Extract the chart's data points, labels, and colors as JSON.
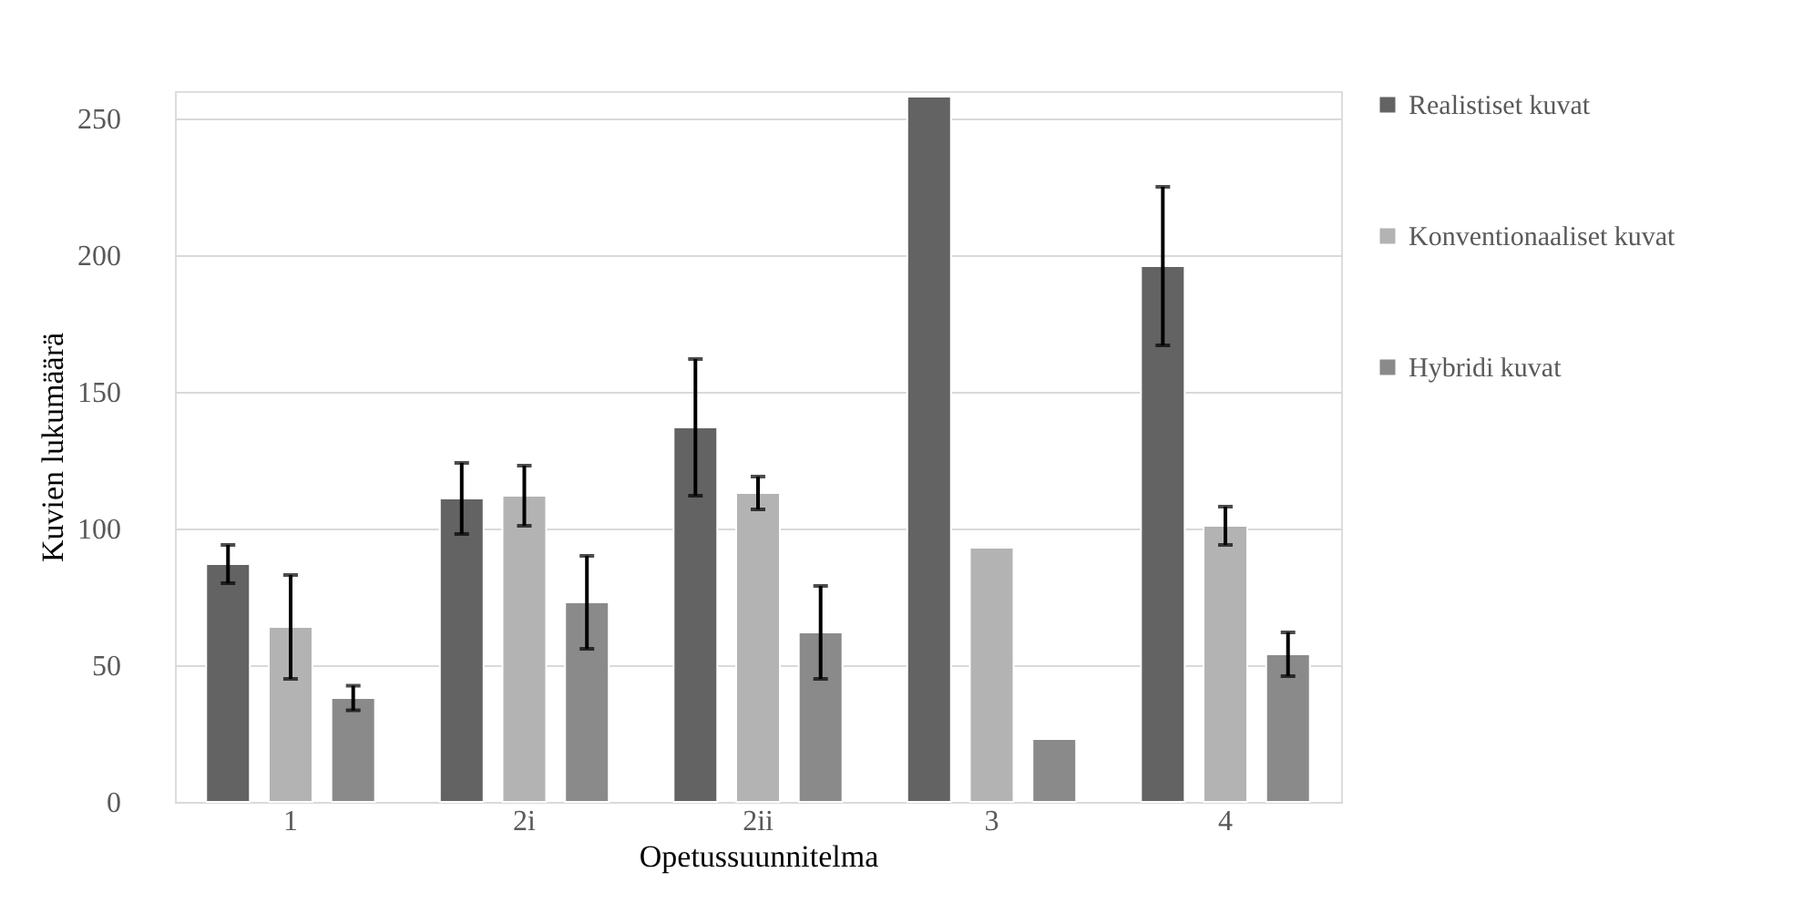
{
  "chart_data": {
    "type": "bar",
    "xlabel": "Opetussuunnitelma",
    "ylabel": "Kuvien lukumäärä",
    "categories": [
      "1",
      "2i",
      "2ii",
      "3",
      "4"
    ],
    "series": [
      {
        "name": "Realistiset kuvat",
        "color": "#636363",
        "values": [
          87,
          111,
          137,
          258,
          196
        ],
        "errors": [
          7,
          13,
          25,
          null,
          29
        ]
      },
      {
        "name": "Konventionaaliset kuvat",
        "color": "#b3b3b3",
        "values": [
          64,
          112,
          113,
          93,
          101
        ],
        "errors": [
          19,
          11,
          6,
          null,
          7
        ]
      },
      {
        "name": "Hybridi kuvat",
        "color": "#8a8a8a",
        "values": [
          38,
          73,
          62,
          23,
          54
        ],
        "errors": [
          4.5,
          17,
          17,
          null,
          8
        ]
      }
    ],
    "ylim": [
      0,
      260
    ],
    "yticks": [
      0,
      50,
      100,
      150,
      200,
      250
    ],
    "grid": "y",
    "legend": "right"
  }
}
